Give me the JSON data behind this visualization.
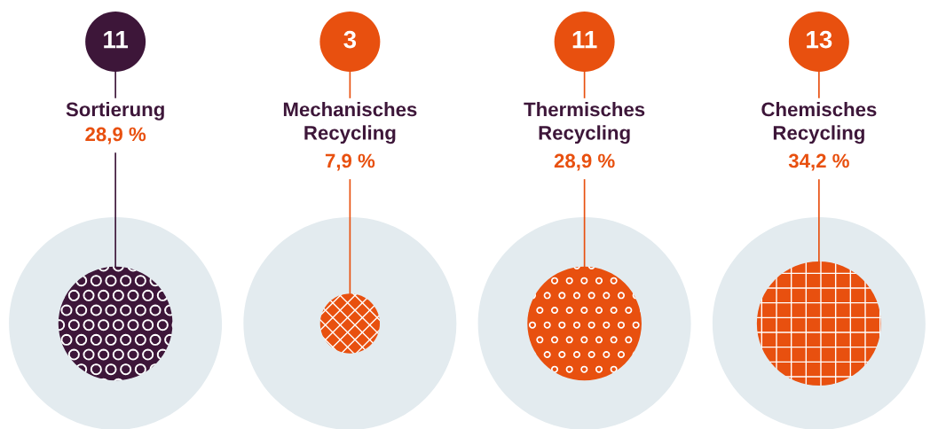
{
  "chart_data": {
    "type": "other",
    "categories": [
      "Sortierung",
      "Mechanisches\nRecycling",
      "Thermisches\nRecycling",
      "Chemisches\nRecycling"
    ],
    "values": [
      28.9,
      7.9,
      28.9,
      34.2
    ],
    "annotations": [
      "11",
      "3",
      "11",
      "13"
    ],
    "value_labels": [
      "28,9 %",
      "7,9 %",
      "28,9 %",
      "34,2 %"
    ],
    "colors": [
      "#3d1639",
      "#e8500f",
      "#e8500f",
      "#e8500f"
    ]
  }
}
